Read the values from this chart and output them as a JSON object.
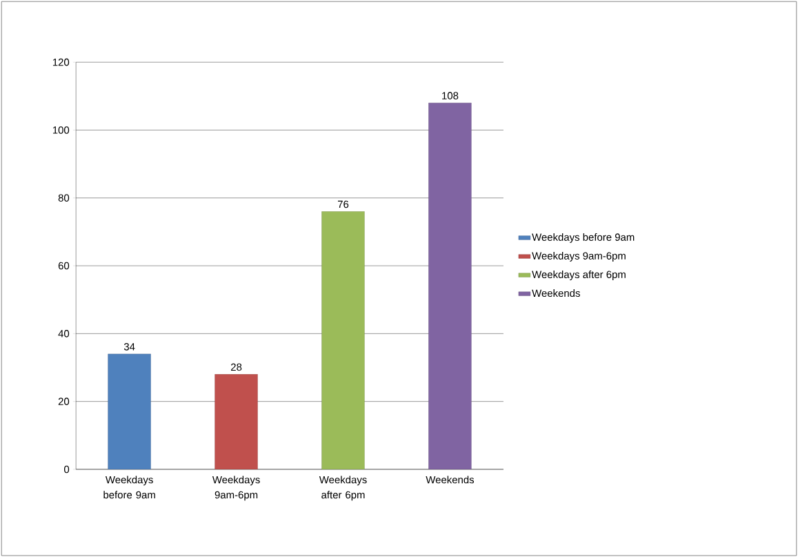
{
  "chart_data": {
    "type": "bar",
    "categories": [
      "Weekdays before 9am",
      "Weekdays 9am-6pm",
      "Weekdays after 6pm",
      "Weekends"
    ],
    "series": [
      {
        "name": "Weekdays before 9am",
        "color": "#4f81bd",
        "values": [
          34,
          null,
          null,
          null
        ]
      },
      {
        "name": "Weekdays 9am-6pm",
        "color": "#c0504d",
        "values": [
          null,
          28,
          null,
          null
        ]
      },
      {
        "name": "Weekdays after 6pm",
        "color": "#9bbb59",
        "values": [
          null,
          null,
          76,
          null
        ]
      },
      {
        "name": "Weekends",
        "color": "#8064a2",
        "values": [
          null,
          null,
          null,
          108
        ]
      }
    ],
    "ylim": [
      0,
      120
    ],
    "yticks": [
      0,
      20,
      40,
      60,
      80,
      100,
      120
    ],
    "grid": "y",
    "legend": "right",
    "data_labels": true
  }
}
